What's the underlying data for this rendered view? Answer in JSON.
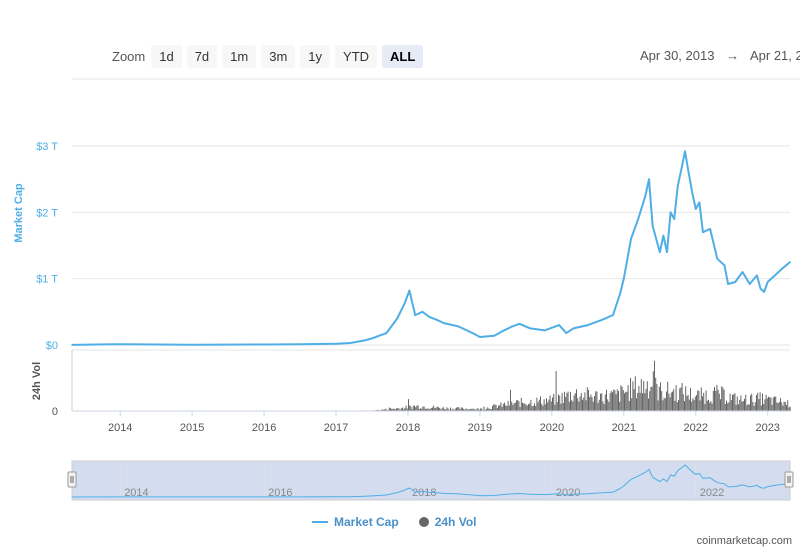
{
  "toolbar": {
    "zoom_label": "Zoom",
    "buttons": [
      "1d",
      "7d",
      "1m",
      "3m",
      "1y",
      "YTD",
      "ALL"
    ],
    "active": "ALL"
  },
  "range": {
    "from": "Apr 30, 2013",
    "arrow": "→",
    "to": "Apr 21, 2"
  },
  "colors": {
    "market_cap": "#4faee6",
    "volume": "#666666",
    "navigator_fill": "#c5d2ea"
  },
  "legend": {
    "market_cap": "Market Cap",
    "volume": "24h Vol"
  },
  "credit": "coinmarketcap.com",
  "chart_data": {
    "type": "line",
    "ylabel": "Market Cap",
    "vol_label": "24h Vol",
    "y_ticks": [
      "$0",
      "$1 T",
      "$2 T",
      "$3 T"
    ],
    "ylim": [
      0,
      3
    ],
    "vol_ticks": [
      "0"
    ],
    "x_ticks": [
      "2014",
      "2015",
      "2016",
      "2017",
      "2018",
      "2019",
      "2020",
      "2021",
      "2022",
      "2023"
    ],
    "navigator_ticks": [
      "2014",
      "2016",
      "2018",
      "2020",
      "2022"
    ],
    "xlim": [
      2013.33,
      2023.31
    ],
    "series": [
      {
        "name": "Market Cap",
        "unit": "trillion USD",
        "x": [
          2013.33,
          2013.9,
          2014.0,
          2014.5,
          2015.0,
          2016.0,
          2016.5,
          2017.0,
          2017.2,
          2017.4,
          2017.5,
          2017.6,
          2017.7,
          2017.85,
          2017.95,
          2018.02,
          2018.1,
          2018.2,
          2018.3,
          2018.4,
          2018.5,
          2018.7,
          2018.9,
          2019.0,
          2019.2,
          2019.3,
          2019.45,
          2019.55,
          2019.7,
          2019.9,
          2020.1,
          2020.2,
          2020.3,
          2020.5,
          2020.7,
          2020.85,
          2020.95,
          2021.0,
          2021.1,
          2021.2,
          2021.3,
          2021.35,
          2021.4,
          2021.45,
          2021.5,
          2021.55,
          2021.6,
          2021.65,
          2021.7,
          2021.75,
          2021.8,
          2021.85,
          2021.9,
          2021.95,
          2022.0,
          2022.05,
          2022.1,
          2022.2,
          2022.3,
          2022.4,
          2022.45,
          2022.55,
          2022.65,
          2022.75,
          2022.85,
          2022.9,
          2022.95,
          2023.0,
          2023.1,
          2023.2,
          2023.31
        ],
        "values": [
          0.002,
          0.01,
          0.012,
          0.008,
          0.005,
          0.007,
          0.01,
          0.018,
          0.03,
          0.07,
          0.1,
          0.14,
          0.18,
          0.4,
          0.62,
          0.82,
          0.45,
          0.5,
          0.42,
          0.38,
          0.33,
          0.28,
          0.18,
          0.12,
          0.14,
          0.2,
          0.28,
          0.32,
          0.25,
          0.22,
          0.3,
          0.18,
          0.25,
          0.3,
          0.38,
          0.45,
          0.78,
          1.0,
          1.6,
          1.9,
          2.25,
          2.5,
          1.8,
          1.6,
          1.4,
          1.65,
          1.4,
          2.0,
          1.9,
          2.4,
          2.65,
          2.92,
          2.6,
          2.3,
          2.05,
          2.15,
          1.7,
          1.75,
          1.3,
          1.2,
          0.92,
          0.95,
          1.1,
          0.92,
          1.05,
          0.85,
          0.8,
          0.95,
          1.05,
          1.15,
          1.25
        ]
      },
      {
        "name": "24h Vol",
        "unit": "relative",
        "x": [
          2013.33,
          2017.0,
          2017.5,
          2017.9,
          2018.1,
          2018.5,
          2019.0,
          2019.3,
          2019.6,
          2020.0,
          2020.3,
          2020.6,
          2020.9,
          2021.1,
          2021.35,
          2021.5,
          2021.8,
          2022.0,
          2022.3,
          2022.6,
          2022.9,
          2023.1,
          2023.31
        ],
        "values": [
          0.0,
          0.002,
          0.01,
          0.06,
          0.1,
          0.06,
          0.04,
          0.12,
          0.18,
          0.22,
          0.35,
          0.3,
          0.32,
          0.45,
          0.55,
          0.4,
          0.38,
          0.3,
          0.35,
          0.22,
          0.25,
          0.2,
          0.15
        ]
      }
    ],
    "grid": true,
    "legend_position": "bottom-center"
  }
}
